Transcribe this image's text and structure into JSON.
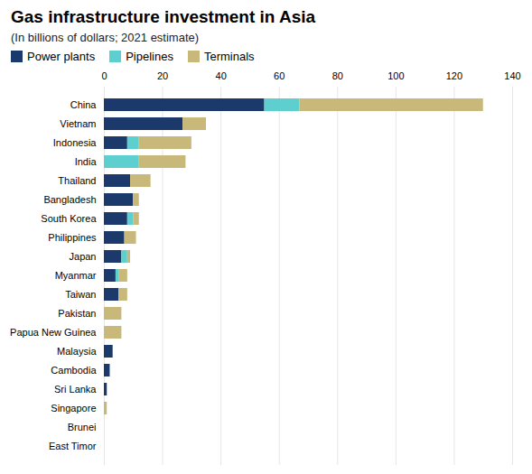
{
  "chart_data": {
    "type": "bar",
    "title": "Gas infrastructure investment in Asia",
    "subtitle": "(In billions of dollars; 2021 estimate)",
    "orientation": "horizontal",
    "stacked": true,
    "categories": [
      "China",
      "Vietnam",
      "Indonesia",
      "India",
      "Thailand",
      "Bangladesh",
      "South Korea",
      "Philippines",
      "Japan",
      "Myanmar",
      "Taiwan",
      "Pakistan",
      "Papua New Guinea",
      "Malaysia",
      "Cambodia",
      "Sri Lanka",
      "Singapore",
      "Brunei",
      "East Timor"
    ],
    "series": [
      {
        "name": "Power plants",
        "color": "#1b3a6b",
        "values": [
          55,
          27,
          8,
          0,
          9,
          10,
          8,
          7,
          6,
          4,
          5,
          0,
          0,
          3,
          2,
          1,
          0,
          0,
          0
        ]
      },
      {
        "name": "Pipelines",
        "color": "#5ecfcf",
        "values": [
          12,
          0,
          4,
          12,
          0,
          0,
          2,
          0,
          2,
          1,
          0,
          0,
          0,
          0,
          0,
          0,
          0,
          0,
          0
        ]
      },
      {
        "name": "Terminals",
        "color": "#c8b87a",
        "values": [
          63,
          8,
          18,
          16,
          7,
          2,
          2,
          4,
          1,
          3,
          3,
          6,
          6,
          0,
          0,
          0,
          1,
          0,
          0
        ]
      }
    ],
    "xlim": [
      0,
      140
    ],
    "xticks": [
      0,
      20,
      40,
      60,
      80,
      100,
      120,
      140
    ],
    "grid": true,
    "legend": "upper left"
  }
}
